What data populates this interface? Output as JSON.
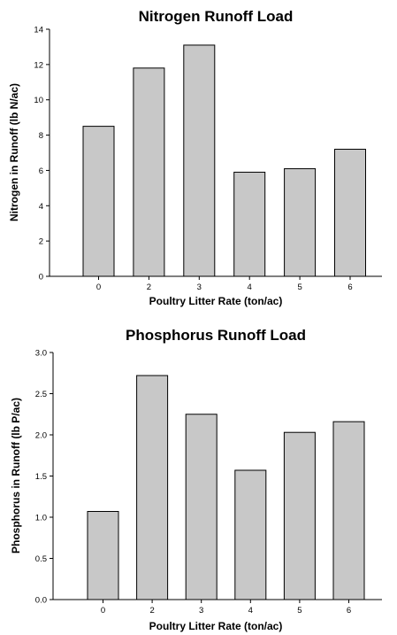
{
  "chart_data": [
    {
      "type": "bar",
      "title": "Nitrogen Runoff Load",
      "xlabel": "Poultry Litter Rate (ton/ac)",
      "ylabel": "Nitrogen in Runoff (lb N/ac)",
      "categories": [
        "0",
        "2",
        "3",
        "4",
        "5",
        "6"
      ],
      "values": [
        8.5,
        11.8,
        13.1,
        5.9,
        6.1,
        7.2
      ],
      "ylim": [
        0,
        14
      ],
      "yticks": [
        "0",
        "2",
        "4",
        "6",
        "8",
        "10",
        "12",
        "14"
      ],
      "bar_color": "#c8c8c8",
      "grid": false
    },
    {
      "type": "bar",
      "title": "Phosphorus Runoff Load",
      "xlabel": "Poultry Litter Rate (ton/ac)",
      "ylabel": "Phosphorus in Runoff (lb P/ac)",
      "categories": [
        "0",
        "2",
        "3",
        "4",
        "5",
        "6"
      ],
      "values": [
        1.07,
        2.72,
        2.25,
        1.57,
        2.03,
        2.16
      ],
      "ylim": [
        0,
        3.0
      ],
      "yticks": [
        "0.0",
        "0.5",
        "1.0",
        "1.5",
        "2.0",
        "2.5",
        "3.0"
      ],
      "bar_color": "#c8c8c8",
      "grid": false
    }
  ]
}
